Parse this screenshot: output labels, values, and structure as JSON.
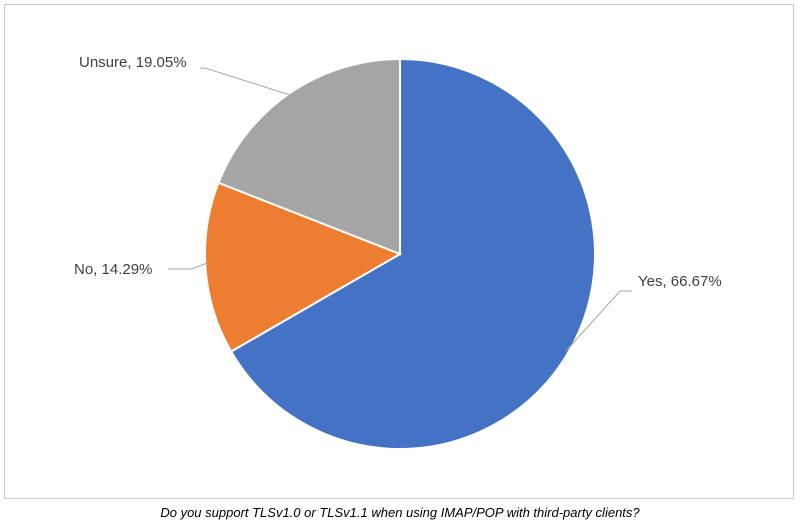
{
  "chart_data": {
    "type": "pie",
    "caption": "Do you support TLSv1.0 or TLSv1.1 when using IMAP/POP with third-party clients?",
    "slices": [
      {
        "label": "Yes",
        "value": 66.67,
        "color": "#4472C4"
      },
      {
        "label": "No",
        "value": 14.29,
        "color": "#ED7D31"
      },
      {
        "label": "Unsure",
        "value": 19.05,
        "color": "#A5A5A5"
      }
    ],
    "data_labels": [
      "Yes, 66.67%",
      "No, 14.29%",
      "Unsure, 19.05%"
    ],
    "legend": "none"
  }
}
